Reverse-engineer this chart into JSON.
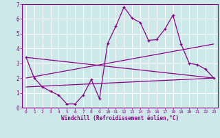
{
  "background_color": "#cce8e8",
  "grid_color": "#ffffff",
  "line_color": "#880088",
  "xlim": [
    -0.5,
    23.5
  ],
  "ylim": [
    0,
    7
  ],
  "xlabel": "Windchill (Refroidissement éolien,°C)",
  "xticks": [
    0,
    1,
    2,
    3,
    4,
    5,
    6,
    7,
    8,
    9,
    10,
    11,
    12,
    13,
    14,
    15,
    16,
    17,
    18,
    19,
    20,
    21,
    22,
    23
  ],
  "yticks": [
    0,
    1,
    2,
    3,
    4,
    5,
    6,
    7
  ],
  "series1_x": [
    0,
    1,
    2,
    3,
    4,
    5,
    6,
    7,
    8,
    9,
    10,
    11,
    12,
    13,
    14,
    15,
    16,
    17,
    18,
    19,
    20,
    21,
    22,
    23
  ],
  "series1_y": [
    3.4,
    2.0,
    1.4,
    1.1,
    0.85,
    0.25,
    0.25,
    0.85,
    1.9,
    0.6,
    4.35,
    5.5,
    6.8,
    6.05,
    5.75,
    4.55,
    4.6,
    5.3,
    6.25,
    4.3,
    3.0,
    2.9,
    2.6,
    2.0
  ],
  "series2_x": [
    0,
    23
  ],
  "series2_y": [
    3.4,
    2.0
  ],
  "series3_x": [
    0,
    23
  ],
  "series3_y": [
    2.0,
    4.3
  ],
  "series4_x": [
    0,
    23
  ],
  "series4_y": [
    1.4,
    2.0
  ],
  "xlabel_fontsize": 5.5,
  "tick_fontsize_x": 4.5,
  "tick_fontsize_y": 5.5
}
